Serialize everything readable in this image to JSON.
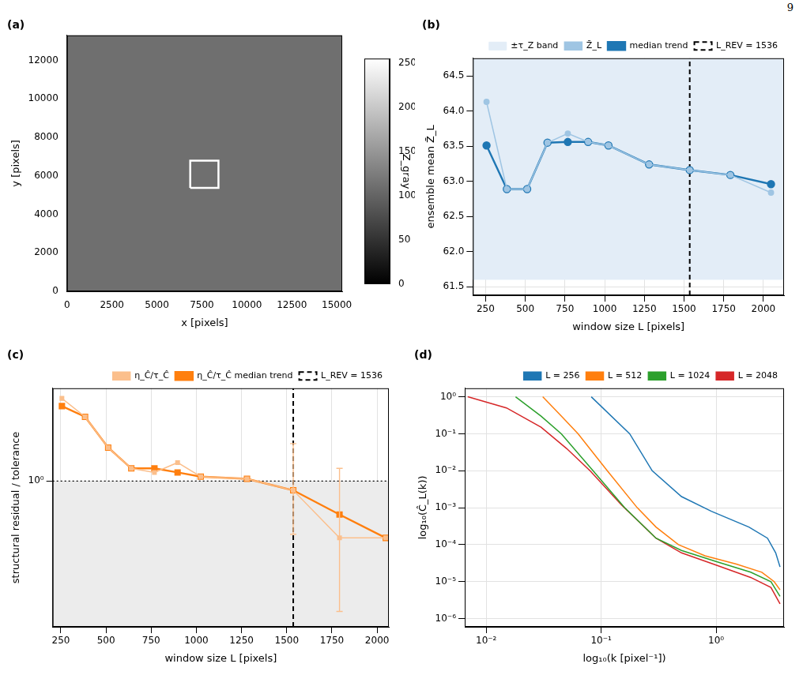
{
  "page_number": "9",
  "chart_data": [
    {
      "panel": "(a)",
      "type": "image",
      "x_label": "x [pixels]",
      "y_label": "y [pixels]",
      "xlim": [
        0,
        15300
      ],
      "xticks": [
        0,
        2500,
        5000,
        7500,
        10000,
        12500,
        15000
      ],
      "ylim": [
        0,
        13300
      ],
      "yticks": [
        0,
        2000,
        4000,
        6000,
        8000,
        10000,
        12000
      ],
      "grid": false,
      "window": {
        "x": [
          6850,
          8420
        ],
        "y": [
          5370,
          6790
        ],
        "color": "#ffffff"
      },
      "colorbar": {
        "label": "Z_gray",
        "range": [
          0,
          255
        ],
        "ticks": [
          0,
          50,
          100,
          150,
          200,
          250
        ]
      }
    },
    {
      "panel": "(b)",
      "type": "line",
      "x_label": "window size L [pixels]",
      "y_label": "ensemble mean Z̄_L",
      "x": [
        256,
        384,
        512,
        640,
        768,
        896,
        1024,
        1280,
        1536,
        1792,
        2048
      ],
      "xlim": [
        170,
        2130
      ],
      "xticks": [
        250,
        500,
        750,
        1000,
        1250,
        1500,
        1750,
        2000
      ],
      "ylim": [
        61.38,
        64.75
      ],
      "yticks": [
        61.5,
        {
          "value": 62,
          "label": "62.0"
        },
        62.5,
        {
          "value": 63,
          "label": "63.0"
        },
        63.5,
        {
          "value": 64,
          "label": "64.0"
        },
        64.5
      ],
      "grid": true,
      "legend": "top right",
      "band": {
        "name": "±τ_Z band",
        "range": [
          61.6,
          64.75
        ],
        "color": "#e3edf7"
      },
      "series": [
        {
          "name": "Z̄_L",
          "color": "#9fc5e3",
          "marker": "circle",
          "line_style": "solid",
          "values": [
            64.13,
            62.89,
            62.89,
            63.55,
            63.68,
            63.56,
            63.51,
            63.24,
            63.16,
            63.09,
            62.84
          ]
        },
        {
          "name": "median trend",
          "color": "#1f77b4",
          "marker": "circle",
          "line_style": "solid",
          "values": [
            63.51,
            62.89,
            62.89,
            63.55,
            63.56,
            63.56,
            63.51,
            63.24,
            63.16,
            63.09,
            62.96
          ]
        }
      ],
      "vline": {
        "name": "L_REV = 1536",
        "x": 1536,
        "color": "#000000",
        "line_style": "dashed"
      }
    },
    {
      "panel": "(c)",
      "type": "line",
      "x_label": "window size L [pixels]",
      "y_label": "structural residual / tolerance",
      "x": [
        256,
        384,
        512,
        640,
        768,
        896,
        1024,
        1280,
        1536,
        1792,
        2048
      ],
      "xlim": [
        205,
        2065
      ],
      "xticks": [
        250,
        500,
        750,
        1000,
        1250,
        1500,
        1750,
        2000
      ],
      "ylim": [
        0.27,
        2.3
      ],
      "yticks": [
        {
          "value": 1,
          "label": "10⁰"
        }
      ],
      "log": "y",
      "grid": true,
      "legend": "top right",
      "threshold": {
        "value": 1,
        "color": "#000000",
        "line_style": "dotted"
      },
      "series": [
        {
          "name": "η_Ĉ/τ_Ĉ",
          "color": "#fbbf8c",
          "marker": "square",
          "line_style": "solid",
          "values": [
            2.1,
            1.78,
            1.35,
            1.12,
            1.08,
            1.18,
            1.04,
            1.02,
            0.92,
            0.6,
            0.6
          ],
          "errors": [
            null,
            null,
            null,
            null,
            null,
            null,
            null,
            null,
            [
              0.62,
              1.4
            ],
            [
              0.31,
              1.12
            ],
            null
          ]
        },
        {
          "name": "η_Ĉ/τ_Ĉ median trend",
          "color": "#ff7f0e",
          "marker": "square",
          "line_style": "solid",
          "values": [
            1.96,
            1.78,
            1.35,
            1.12,
            1.12,
            1.08,
            1.04,
            1.02,
            0.92,
            0.74,
            0.6
          ]
        }
      ],
      "vline": {
        "name": "L_REV = 1536",
        "x": 1536,
        "color": "#000000",
        "line_style": "dashed"
      }
    },
    {
      "panel": "(d)",
      "type": "line",
      "x_label": "log₁₀(k [pixel⁻¹])",
      "y_label": "log₁₀(Ĉ_L(k))",
      "xlim": [
        0.0065,
        3.9
      ],
      "xticks": [
        {
          "value": 0.01,
          "label": "10⁻²"
        },
        {
          "value": 0.1,
          "label": "10⁻¹"
        },
        {
          "value": 1,
          "label": "10⁰"
        }
      ],
      "ylim": [
        6e-07,
        1.7
      ],
      "yticks": [
        {
          "value": 1e-06,
          "label": "10⁻⁶"
        },
        {
          "value": 1e-05,
          "label": "10⁻⁵"
        },
        {
          "value": 0.0001,
          "label": "10⁻⁴"
        },
        {
          "value": 0.001,
          "label": "10⁻³"
        },
        {
          "value": 0.01,
          "label": "10⁻²"
        },
        {
          "value": 0.1,
          "label": "10⁻¹"
        },
        {
          "value": 1,
          "label": "10⁰"
        }
      ],
      "log": true,
      "grid": true,
      "legend": "top right",
      "series": [
        {
          "name": "L = 256",
          "color": "#1f77b4",
          "line_style": "solid",
          "x": [
            0.082,
            0.177,
            0.278,
            0.5,
            0.91,
            1.93,
            2.8,
            3.3,
            3.6
          ],
          "values": [
            1,
            0.1,
            0.01,
            0.002,
            0.0008,
            0.0003,
            0.00015,
            6e-05,
            2.5e-05
          ]
        },
        {
          "name": "L = 512",
          "color": "#ff7f0e",
          "line_style": "solid",
          "x": [
            0.031,
            0.045,
            0.063,
            0.113,
            0.206,
            0.3,
            0.47,
            0.8,
            1.5,
            2.5,
            3.2,
            3.6
          ],
          "values": [
            1,
            0.3,
            0.1,
            0.01,
            0.001,
            0.0003,
            0.0001,
            5e-05,
            3e-05,
            1.8e-05,
            1e-05,
            6e-06
          ]
        },
        {
          "name": "L = 1024",
          "color": "#2ca02c",
          "line_style": "solid",
          "x": [
            0.018,
            0.03,
            0.045,
            0.085,
            0.16,
            0.3,
            0.5,
            1,
            2,
            3,
            3.6
          ],
          "values": [
            1,
            0.3,
            0.1,
            0.01,
            0.001,
            0.00015,
            7e-05,
            3.5e-05,
            1.8e-05,
            1e-05,
            4e-06
          ]
        },
        {
          "name": "L = 2048",
          "color": "#d62728",
          "line_style": "solid",
          "x": [
            0.0069,
            0.015,
            0.03,
            0.05,
            0.08,
            0.15,
            0.3,
            0.5,
            1,
            2,
            3,
            3.6
          ],
          "values": [
            1,
            0.5,
            0.15,
            0.04,
            0.01,
            0.0012,
            0.00015,
            6e-05,
            2.8e-05,
            1.3e-05,
            7e-06,
            2.5e-06
          ]
        }
      ]
    }
  ]
}
